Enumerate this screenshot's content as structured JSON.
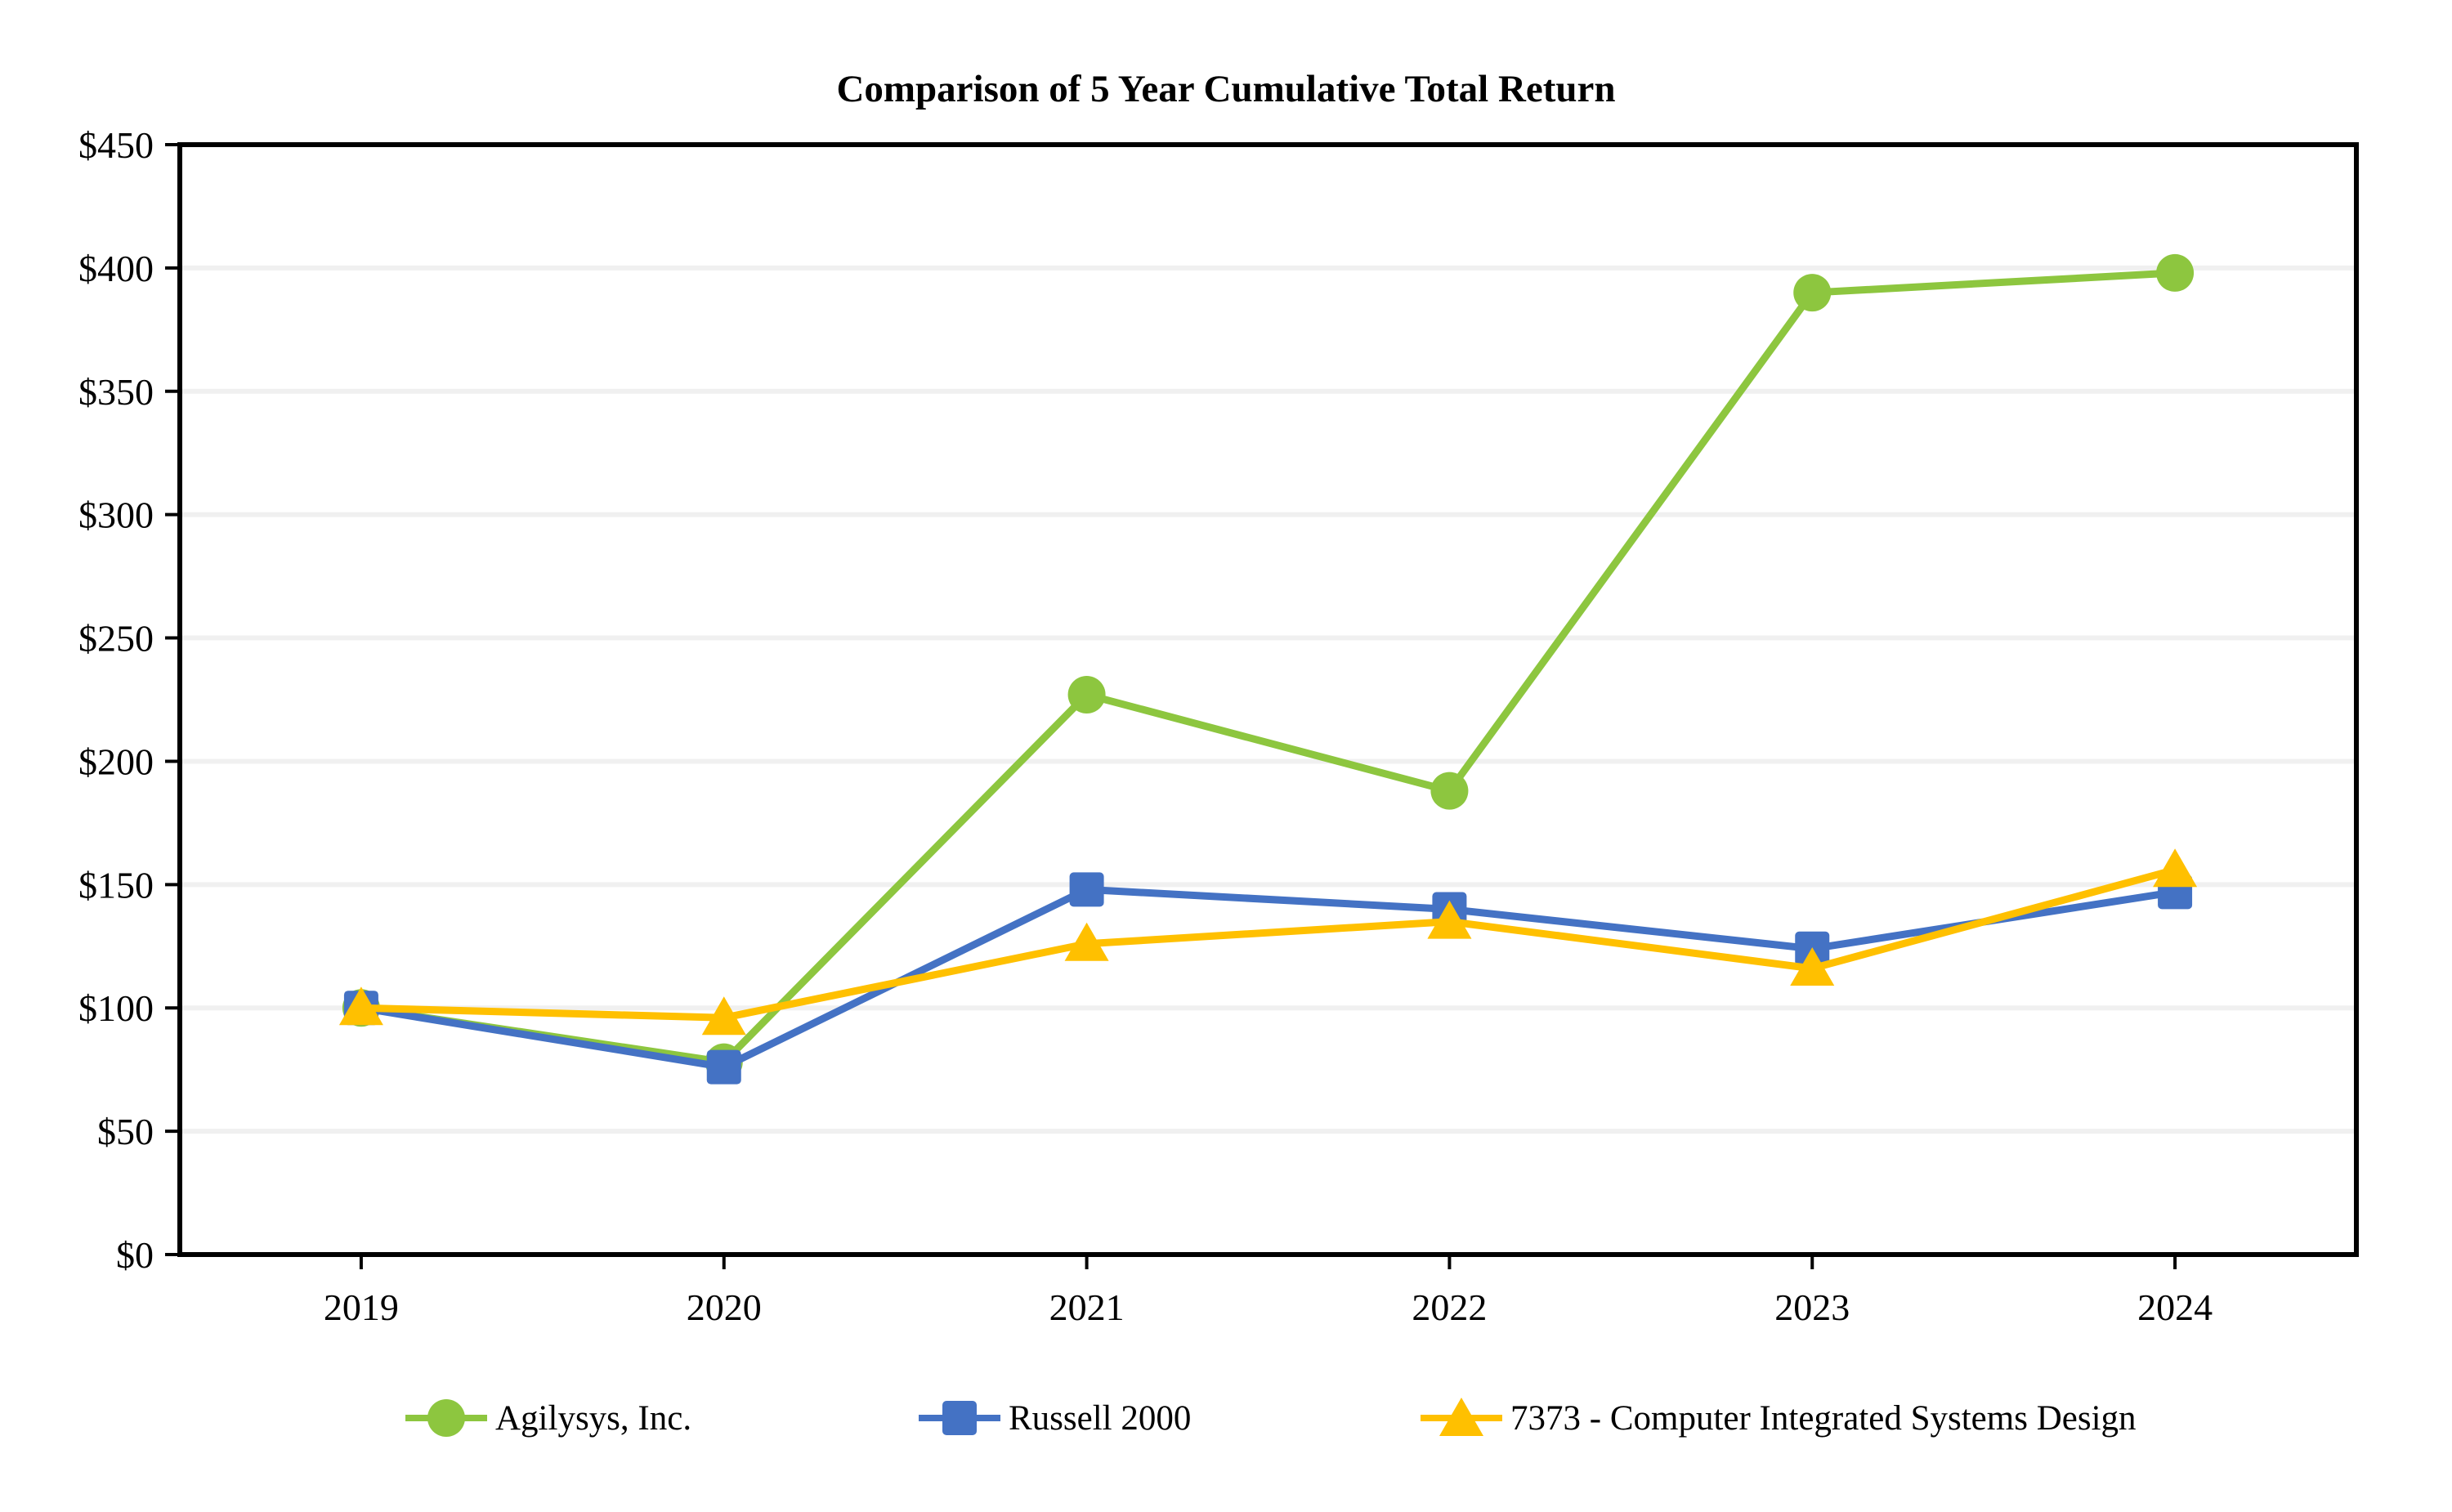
{
  "chart_data": {
    "type": "line",
    "title": "Comparison of 5 Year Cumulative Total Return",
    "categories": [
      "2019",
      "2020",
      "2021",
      "2022",
      "2023",
      "2024"
    ],
    "series": [
      {
        "name": "Agilysys, Inc.",
        "marker": "circle",
        "color": "#8DC63F",
        "values": [
          100,
          78,
          227,
          188,
          390,
          398
        ]
      },
      {
        "name": "Russell 2000",
        "marker": "square",
        "color": "#4472C4",
        "values": [
          100,
          76,
          148,
          140,
          124,
          147
        ]
      },
      {
        "name": "7373 - Computer Integrated Systems Design",
        "marker": "triangle",
        "color": "#FFC000",
        "values": [
          100,
          96,
          126,
          135,
          116,
          156
        ]
      }
    ],
    "ylim": [
      0,
      450
    ],
    "ytick_step": 50,
    "ytick_prefix": "$",
    "grid": "horizontal",
    "legend_position": "bottom",
    "colors": {
      "grid": "#F0F0F0",
      "axis": "#000000",
      "text": "#000000",
      "background": "#FFFFFF"
    }
  }
}
